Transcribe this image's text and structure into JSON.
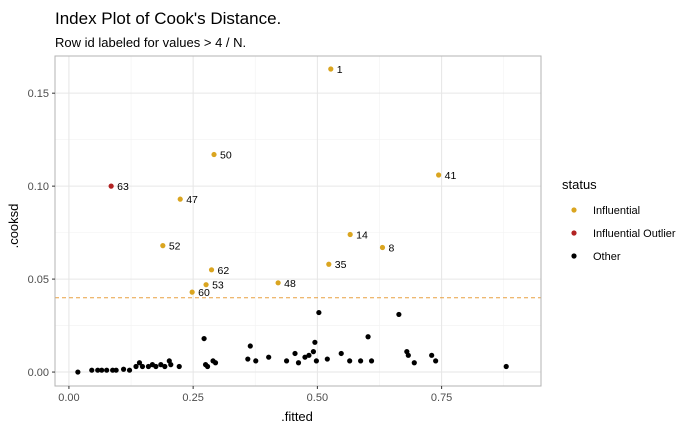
{
  "colors": {
    "influential": "#DAA520",
    "influential_outlier": "#B22222",
    "other": "#000000",
    "threshold": "#E8A040",
    "grid": "#E6E6E6",
    "panel_border": "#B3B3B3"
  },
  "chart_data": {
    "type": "scatter",
    "title": "Index Plot of Cook's Distance.",
    "subtitle": "Row id labeled for values > 4 / N.",
    "xlabel": ".fitted",
    "ylabel": ".cooksd",
    "xlim": [
      -0.028,
      0.95
    ],
    "ylim": [
      -0.0075,
      0.17
    ],
    "x_ticks": [
      0.0,
      0.25,
      0.5,
      0.75
    ],
    "x_tick_labels": [
      "0.00",
      "0.25",
      "0.50",
      "0.75"
    ],
    "y_ticks": [
      0.0,
      0.05,
      0.1,
      0.15
    ],
    "y_tick_labels": [
      "0.00",
      "0.05",
      "0.10",
      "0.15"
    ],
    "threshold": 0.04,
    "legend": {
      "title": "status",
      "position": "right",
      "entries": [
        "Influential",
        "Influential Outlier",
        "Other"
      ]
    },
    "labeled_points": [
      {
        "id": "1",
        "x": 0.527,
        "y": 0.163,
        "status": "Influential"
      },
      {
        "id": "50",
        "x": 0.292,
        "y": 0.117,
        "status": "Influential"
      },
      {
        "id": "41",
        "x": 0.744,
        "y": 0.106,
        "status": "Influential"
      },
      {
        "id": "63",
        "x": 0.085,
        "y": 0.1,
        "status": "Influential Outlier"
      },
      {
        "id": "47",
        "x": 0.224,
        "y": 0.093,
        "status": "Influential"
      },
      {
        "id": "14",
        "x": 0.566,
        "y": 0.074,
        "status": "Influential"
      },
      {
        "id": "52",
        "x": 0.189,
        "y": 0.068,
        "status": "Influential"
      },
      {
        "id": "8",
        "x": 0.631,
        "y": 0.067,
        "status": "Influential"
      },
      {
        "id": "35",
        "x": 0.523,
        "y": 0.058,
        "status": "Influential"
      },
      {
        "id": "62",
        "x": 0.287,
        "y": 0.055,
        "status": "Influential"
      },
      {
        "id": "53",
        "x": 0.276,
        "y": 0.047,
        "status": "Influential"
      },
      {
        "id": "48",
        "x": 0.421,
        "y": 0.048,
        "status": "Influential"
      },
      {
        "id": "60",
        "x": 0.248,
        "y": 0.043,
        "status": "Influential"
      }
    ],
    "other_points": [
      [
        0.018,
        0.0
      ],
      [
        0.046,
        0.001
      ],
      [
        0.058,
        0.001
      ],
      [
        0.066,
        0.001
      ],
      [
        0.076,
        0.001
      ],
      [
        0.088,
        0.001
      ],
      [
        0.095,
        0.001
      ],
      [
        0.11,
        0.0015
      ],
      [
        0.122,
        0.001
      ],
      [
        0.135,
        0.003
      ],
      [
        0.142,
        0.005
      ],
      [
        0.148,
        0.003
      ],
      [
        0.16,
        0.003
      ],
      [
        0.168,
        0.004
      ],
      [
        0.175,
        0.003
      ],
      [
        0.185,
        0.004
      ],
      [
        0.193,
        0.003
      ],
      [
        0.202,
        0.006
      ],
      [
        0.205,
        0.004
      ],
      [
        0.222,
        0.003
      ],
      [
        0.272,
        0.018
      ],
      [
        0.275,
        0.004
      ],
      [
        0.279,
        0.003
      ],
      [
        0.29,
        0.006
      ],
      [
        0.295,
        0.005
      ],
      [
        0.36,
        0.007
      ],
      [
        0.365,
        0.014
      ],
      [
        0.376,
        0.006
      ],
      [
        0.402,
        0.008
      ],
      [
        0.438,
        0.006
      ],
      [
        0.455,
        0.01
      ],
      [
        0.462,
        0.005
      ],
      [
        0.475,
        0.008
      ],
      [
        0.483,
        0.009
      ],
      [
        0.492,
        0.011
      ],
      [
        0.495,
        0.016
      ],
      [
        0.498,
        0.006
      ],
      [
        0.503,
        0.032
      ],
      [
        0.52,
        0.007
      ],
      [
        0.548,
        0.01
      ],
      [
        0.565,
        0.006
      ],
      [
        0.587,
        0.006
      ],
      [
        0.602,
        0.019
      ],
      [
        0.609,
        0.006
      ],
      [
        0.664,
        0.031
      ],
      [
        0.68,
        0.011
      ],
      [
        0.683,
        0.009
      ],
      [
        0.695,
        0.005
      ],
      [
        0.73,
        0.009
      ],
      [
        0.738,
        0.006
      ],
      [
        0.88,
        0.003
      ]
    ]
  }
}
